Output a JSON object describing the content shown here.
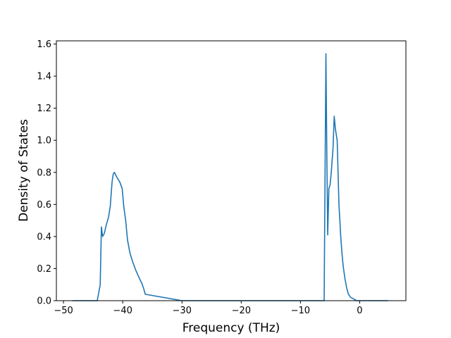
{
  "chart_data": {
    "type": "line",
    "title": "",
    "xlabel": "Frequency (THz)",
    "ylabel": "Density of States",
    "xlim": [
      -51.2,
      7.8
    ],
    "ylim": [
      0,
      1.62
    ],
    "grid": false,
    "legend": "none",
    "x_ticks": [
      -50,
      -40,
      -30,
      -20,
      -10,
      0
    ],
    "x_tick_labels": [
      "−50",
      "−40",
      "−30",
      "−20",
      "−10",
      "0"
    ],
    "y_ticks": [
      0.0,
      0.2,
      0.4,
      0.6,
      0.8,
      1.0,
      1.2,
      1.4,
      1.6
    ],
    "y_tick_labels": [
      "0.0",
      "0.2",
      "0.4",
      "0.6",
      "0.8",
      "1.0",
      "1.2",
      "1.4",
      "1.6"
    ],
    "series": [
      {
        "color": "#1f77b4",
        "x": [
          -48.5,
          -44.3,
          -43.8,
          -43.6,
          -43.4,
          -43.1,
          -42.8,
          -42.4,
          -42.1,
          -41.8,
          -41.6,
          -41.4,
          -41.0,
          -40.5,
          -40.1,
          -39.8,
          -39.5,
          -39.2,
          -38.8,
          -38.3,
          -37.8,
          -37.2,
          -36.8,
          -36.5,
          -36.2,
          -30,
          -20,
          -10,
          -6.0,
          -5.7,
          -5.55,
          -5.4,
          -5.2,
          -5.0,
          -4.8,
          -4.5,
          -4.3,
          -4.1,
          -3.8,
          -3.5,
          -3.2,
          -3.0,
          -2.8,
          -2.5,
          -2.2,
          -1.9,
          -1.5,
          -1.0,
          -0.5,
          0.0,
          2.0,
          4.8
        ],
        "y": [
          0.0,
          0.0,
          0.1,
          0.46,
          0.4,
          0.42,
          0.47,
          0.52,
          0.59,
          0.74,
          0.79,
          0.8,
          0.77,
          0.74,
          0.7,
          0.58,
          0.5,
          0.38,
          0.3,
          0.24,
          0.19,
          0.14,
          0.11,
          0.08,
          0.04,
          0.0,
          0.0,
          0.0,
          0.0,
          1.54,
          0.92,
          0.41,
          0.7,
          0.72,
          0.8,
          0.95,
          1.15,
          1.07,
          1.0,
          0.6,
          0.4,
          0.3,
          0.22,
          0.14,
          0.08,
          0.04,
          0.02,
          0.01,
          0.0,
          0.0,
          0.0,
          0.0
        ]
      }
    ]
  }
}
